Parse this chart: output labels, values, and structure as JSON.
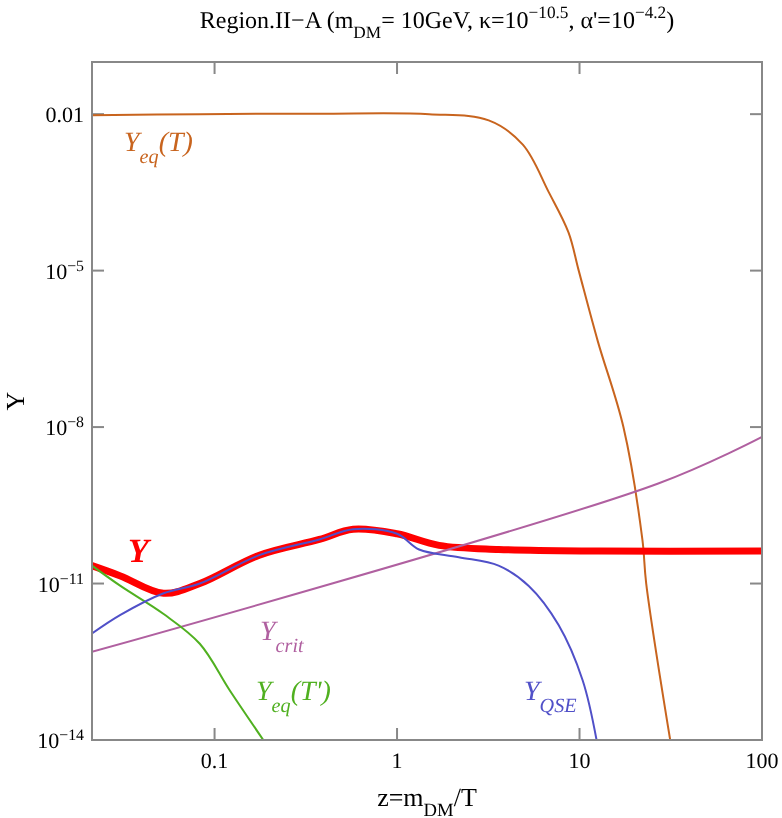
{
  "chart_data": {
    "type": "line",
    "title": "Region.II−A (m$_{DM}$= 10GeV, κ=10$^{−10.5}$, α'=10$^{−4.2}$)",
    "xlabel": "z=m$_{DM}$/T",
    "ylabel": "Y",
    "log": "xy",
    "grid": false,
    "marker": "none",
    "line_style": "solid",
    "xlim": [
      0.0213,
      100
    ],
    "xticks": [
      0.1,
      1,
      10,
      100
    ],
    "ylim": [
      1e-14,
      0.1
    ],
    "yticks": [
      {
        "value": 1e-14,
        "label": "10$^{−14}$"
      },
      {
        "value": 1e-11,
        "label": "10$^{−11}$"
      },
      {
        "value": 1e-08,
        "label": "10$^{−8}$"
      },
      {
        "value": 1e-05,
        "label": "10$^{−5}$"
      },
      0.01
    ],
    "series": [
      {
        "name": "Y$_{eq}$(T)",
        "color": "#c8641e",
        "x": [
          0.0213,
          0.083,
          0.375,
          1.5,
          3.18,
          4.89,
          6.78,
          8.7,
          9.9,
          12.6,
          17.4,
          22.1,
          23.2,
          31.4
        ],
        "values": [
          0.0095,
          0.01,
          0.0102,
          0.01,
          0.0076,
          0.0026,
          0.00032,
          5.4e-05,
          1e-05,
          4.4e-07,
          1e-08,
          7e-11,
          1e-11,
          1e-14
        ]
      },
      {
        "name": "Y",
        "color": "#ff0000",
        "x": [
          0.0213,
          0.0305,
          0.0526,
          0.083,
          0.176,
          0.375,
          0.575,
          1,
          1.7,
          3.6,
          12.7,
          100
        ],
        "values": [
          2.2e-11,
          1.4e-11,
          6.5e-12,
          1e-11,
          3.5e-11,
          7e-11,
          1.1e-10,
          9e-11,
          5.4e-11,
          4.5e-11,
          4.2e-11,
          4.2e-11
        ]
      },
      {
        "name": "Y$_{crit}$",
        "color": "#b060a0",
        "x": [
          0.0213,
          27,
          100
        ],
        "values": [
          4.9e-13,
          8.3e-10,
          6.5e-09
        ]
      },
      {
        "name": "Y$_{eq}$(T')",
        "color": "#50b020",
        "x": [
          0.0213,
          0.0305,
          0.0526,
          0.083,
          0.121,
          0.185
        ],
        "values": [
          2.2e-11,
          9e-12,
          2.6e-12,
          7e-13,
          9e-14,
          1e-14
        ]
      },
      {
        "name": "Y$_{QSE}$",
        "color": "#5050c8",
        "x": [
          0.0213,
          0.0305,
          0.0526,
          0.083,
          0.176,
          0.375,
          0.575,
          1,
          1.32,
          2.18,
          3.6,
          5.27,
          7.68,
          10.4,
          12.4
        ],
        "values": [
          1.1e-12,
          2.5e-12,
          6.5e-12,
          1e-11,
          3.5e-11,
          7e-11,
          1.1e-10,
          9e-11,
          4.5e-11,
          3.2e-11,
          2.2e-11,
          9e-12,
          1.6e-12,
          1.4e-13,
          1e-14
        ]
      }
    ]
  }
}
